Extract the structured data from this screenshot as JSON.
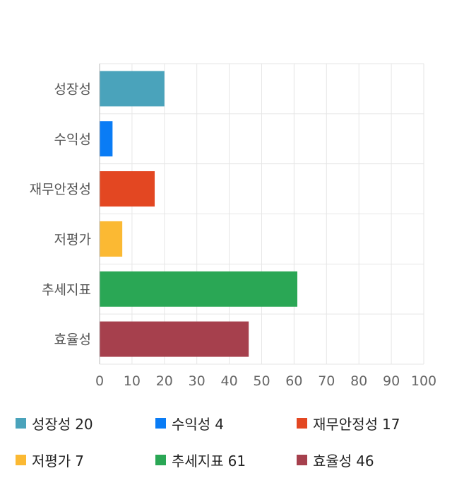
{
  "chart_data": {
    "type": "bar",
    "orientation": "horizontal",
    "categories": [
      "성장성",
      "수익성",
      "재무안정성",
      "저평가",
      "추세지표",
      "효율성"
    ],
    "values": [
      20,
      4,
      17,
      7,
      61,
      46
    ],
    "colors": [
      "#4aa3bb",
      "#0a7cf5",
      "#e34722",
      "#fbb933",
      "#2aa755",
      "#a6404d"
    ],
    "xlim": [
      0,
      100
    ],
    "xticks": [
      0,
      10,
      20,
      30,
      40,
      50,
      60,
      70,
      80,
      90,
      100
    ],
    "grid": true,
    "legend_position": "bottom",
    "title": "",
    "xlabel": "",
    "ylabel": ""
  },
  "legend": [
    {
      "label": "성장성",
      "value": "20"
    },
    {
      "label": "수익성",
      "value": "4"
    },
    {
      "label": "재무안정성",
      "value": "17"
    },
    {
      "label": "저평가",
      "value": "7"
    },
    {
      "label": "추세지표",
      "value": "61"
    },
    {
      "label": "효율성",
      "value": "46"
    }
  ]
}
